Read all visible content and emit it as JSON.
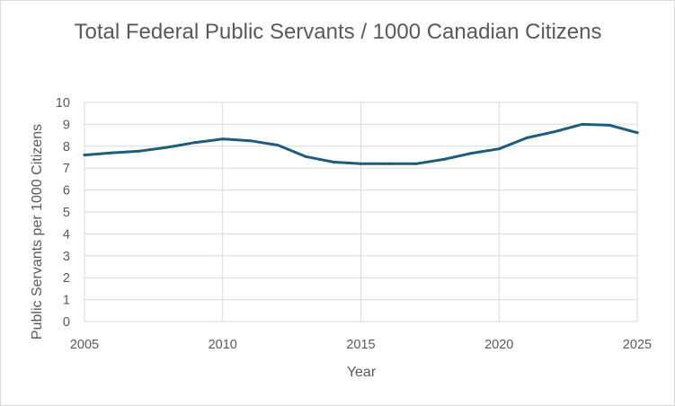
{
  "chart_data": {
    "type": "line",
    "title": "Total Federal Public Servants / 1000 Canadian Citizens",
    "xlabel": "Year",
    "ylabel": "Public Servants per 1000 Citizens",
    "xlim": [
      2005,
      2025
    ],
    "ylim": [
      0,
      10
    ],
    "x_ticks": [
      "2005",
      "2010",
      "2015",
      "2020",
      "2025"
    ],
    "y_ticks": [
      "0",
      "1",
      "2",
      "3",
      "4",
      "5",
      "6",
      "7",
      "8",
      "9",
      "10"
    ],
    "grid": true,
    "line_color": "#1f5c7a",
    "x": [
      2005,
      2006,
      2007,
      2008,
      2009,
      2010,
      2011,
      2012,
      2013,
      2014,
      2015,
      2016,
      2017,
      2018,
      2019,
      2020,
      2021,
      2022,
      2023,
      2024,
      2025
    ],
    "y": [
      7.6,
      7.7,
      7.78,
      7.95,
      8.17,
      8.33,
      8.25,
      8.05,
      7.53,
      7.28,
      7.2,
      7.2,
      7.2,
      7.4,
      7.68,
      7.88,
      8.38,
      8.66,
      9.0,
      8.96,
      8.62
    ]
  }
}
